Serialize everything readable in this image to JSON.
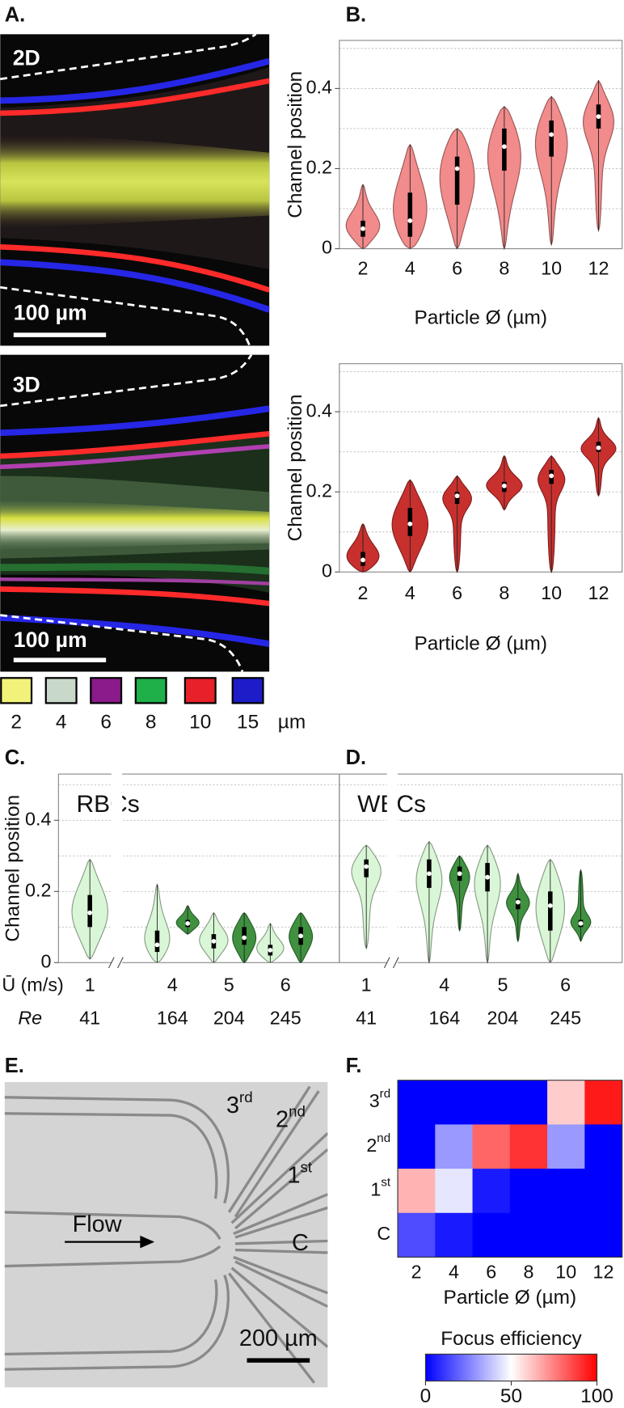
{
  "panel_labels": [
    "A.",
    "B.",
    "C.",
    "D.",
    "E.",
    "F."
  ],
  "panel_a": {
    "top_label": "2D",
    "bottom_label": "3D",
    "top_scale": "100 µm",
    "bottom_scale": "100 µm",
    "legend": {
      "colors": [
        "#f2f27a",
        "#c9d9c9",
        "#8b1a8b",
        "#1fb04a",
        "#e8202a",
        "#1c1cc8"
      ],
      "labels": [
        "2",
        "4",
        "6",
        "8",
        "10",
        "15"
      ],
      "unit": "µm"
    }
  },
  "panel_e": {
    "outlets": [
      {
        "text": "3",
        "sup": "rd"
      },
      {
        "text": "2",
        "sup": "nd"
      },
      {
        "text": "1",
        "sup": "st"
      },
      {
        "text": "C"
      }
    ],
    "flow": "Flow",
    "scale": "200 µm"
  },
  "chart_data": [
    {
      "type": "violin",
      "ylabel": "Channel position",
      "xlabel": "Particle Ø (µm)",
      "categories": [
        "2",
        "4",
        "6",
        "8",
        "10",
        "12"
      ],
      "ylim": [
        0,
        0.52
      ],
      "yticks": [
        0,
        0.2,
        0.4
      ],
      "grid_lines": [
        0.1,
        0.2,
        0.3,
        0.4,
        0.5
      ],
      "series": [
        {
          "color": "#f28b8b",
          "values": [
            {
              "min": 0,
              "q1": 0.03,
              "median": 0.05,
              "q3": 0.07,
              "max": 0.16
            },
            {
              "min": 0,
              "q1": 0.03,
              "median": 0.07,
              "q3": 0.14,
              "max": 0.26
            },
            {
              "min": 0,
              "q1": 0.11,
              "median": 0.2,
              "q3": 0.23,
              "max": 0.3
            },
            {
              "min": 0,
              "q1": 0.195,
              "median": 0.255,
              "q3": 0.3,
              "max": 0.355
            },
            {
              "min": 0.01,
              "q1": 0.23,
              "median": 0.285,
              "q3": 0.32,
              "max": 0.38
            },
            {
              "min": 0.045,
              "q1": 0.3,
              "median": 0.33,
              "q3": 0.36,
              "max": 0.42
            }
          ]
        }
      ]
    },
    {
      "type": "violin",
      "ylabel": "Channel position",
      "xlabel": "Particle Ø (µm)",
      "categories": [
        "2",
        "4",
        "6",
        "8",
        "10",
        "12"
      ],
      "ylim": [
        0,
        0.52
      ],
      "yticks": [
        0,
        0.2,
        0.4
      ],
      "grid_lines": [
        0.1,
        0.2,
        0.3,
        0.4,
        0.5
      ],
      "series": [
        {
          "color": "#c8302e",
          "values": [
            {
              "min": 0,
              "q1": 0.015,
              "median": 0.03,
              "q3": 0.05,
              "max": 0.12
            },
            {
              "min": 0,
              "q1": 0.09,
              "median": 0.12,
              "q3": 0.16,
              "max": 0.23
            },
            {
              "min": 0,
              "q1": 0.17,
              "median": 0.19,
              "q3": 0.2,
              "max": 0.24
            },
            {
              "min": 0.155,
              "q1": 0.2,
              "median": 0.215,
              "q3": 0.225,
              "max": 0.29
            },
            {
              "min": 0,
              "q1": 0.22,
              "median": 0.24,
              "q3": 0.255,
              "max": 0.29
            },
            {
              "min": 0.19,
              "q1": 0.3,
              "median": 0.31,
              "q3": 0.325,
              "max": 0.385
            }
          ]
        }
      ]
    },
    {
      "type": "violin",
      "annotation": "RBCs",
      "ylabel": "Channel position",
      "row_labels": [
        "Ū (m/s)",
        "Re"
      ],
      "categories": [
        "1",
        "4",
        "5",
        "6"
      ],
      "re": [
        "41",
        "164",
        "204",
        "245"
      ],
      "ylim": [
        0,
        0.53
      ],
      "yticks": [
        0,
        0.2,
        0.4
      ],
      "grid_lines": [
        0.1,
        0.2,
        0.3,
        0.4,
        0.5
      ],
      "series": [
        {
          "color": "#d9f7d6",
          "values": [
            {
              "min": 0.01,
              "q1": 0.1,
              "median": 0.14,
              "q3": 0.19,
              "max": 0.29
            },
            {
              "min": 0,
              "q1": 0.03,
              "median": 0.05,
              "q3": 0.09,
              "max": 0.22
            },
            {
              "min": 0,
              "q1": 0.04,
              "median": 0.06,
              "q3": 0.08,
              "max": 0.14
            },
            {
              "min": 0,
              "q1": 0.02,
              "median": 0.035,
              "q3": 0.05,
              "max": 0.11
            }
          ]
        },
        {
          "color": "#3f9140",
          "values": [
            null,
            {
              "min": 0.08,
              "q1": 0.1,
              "median": 0.11,
              "q3": 0.12,
              "max": 0.16
            },
            {
              "min": 0,
              "q1": 0.05,
              "median": 0.07,
              "q3": 0.1,
              "max": 0.14
            },
            {
              "min": 0,
              "q1": 0.05,
              "median": 0.075,
              "q3": 0.1,
              "max": 0.14
            }
          ]
        }
      ]
    },
    {
      "type": "violin",
      "annotation": "WBCs",
      "categories": [
        "1",
        "4",
        "5",
        "6"
      ],
      "re": [
        "41",
        "164",
        "204",
        "245"
      ],
      "ylim": [
        0,
        0.53
      ],
      "grid_lines": [
        0.1,
        0.2,
        0.3,
        0.4,
        0.5
      ],
      "series": [
        {
          "color": "#d9f7d6",
          "values": [
            {
              "min": 0.04,
              "q1": 0.24,
              "median": 0.27,
              "q3": 0.29,
              "max": 0.33
            },
            {
              "min": 0,
              "q1": 0.21,
              "median": 0.25,
              "q3": 0.29,
              "max": 0.34
            },
            {
              "min": 0,
              "q1": 0.2,
              "median": 0.24,
              "q3": 0.28,
              "max": 0.33
            },
            {
              "min": 0,
              "q1": 0.09,
              "median": 0.16,
              "q3": 0.2,
              "max": 0.29
            }
          ]
        },
        {
          "color": "#3f9140",
          "values": [
            null,
            {
              "min": 0.09,
              "q1": 0.23,
              "median": 0.25,
              "q3": 0.27,
              "max": 0.3
            },
            {
              "min": 0.06,
              "q1": 0.15,
              "median": 0.17,
              "q3": 0.18,
              "max": 0.25
            },
            {
              "min": 0.06,
              "q1": 0.1,
              "median": 0.11,
              "q3": 0.12,
              "max": 0.26
            }
          ]
        }
      ]
    },
    {
      "type": "heatmap",
      "xlabel": "Particle Ø (µm)",
      "categories": [
        "2",
        "4",
        "6",
        "8",
        "10",
        "12"
      ],
      "rows": [
        {
          "text": "3",
          "sup": "rd"
        },
        {
          "text": "2",
          "sup": "nd"
        },
        {
          "text": "1",
          "sup": "st"
        },
        {
          "text": "C"
        }
      ],
      "values": [
        [
          0,
          0,
          0,
          0,
          60,
          95
        ],
        [
          0,
          30,
          80,
          90,
          30,
          0
        ],
        [
          65,
          45,
          5,
          0,
          0,
          0
        ],
        [
          15,
          5,
          0,
          0,
          0,
          0
        ]
      ],
      "colorscale": [
        "#0000ff",
        "#ffffff",
        "#ff0000"
      ],
      "clim": [
        0,
        100
      ],
      "colorbar_label": "Focus efficiency",
      "colorbar_ticks": [
        0,
        50,
        100
      ]
    }
  ]
}
